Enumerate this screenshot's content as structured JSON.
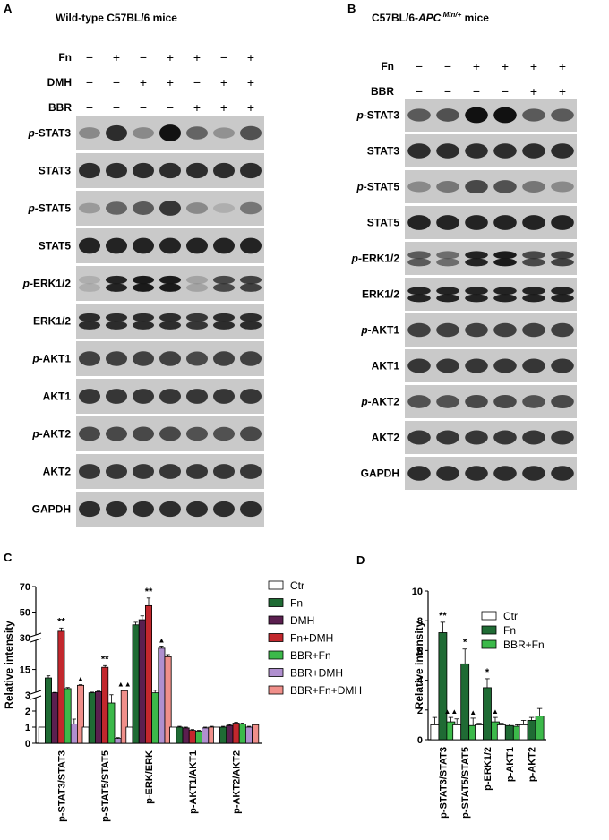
{
  "panel_a": {
    "letter": "A",
    "title": "Wild-type C57BL/6 mice",
    "treatments": [
      {
        "label": "Fn",
        "signs": [
          "−",
          "+",
          "−",
          "+",
          "+",
          "−",
          "+"
        ]
      },
      {
        "label": "DMH",
        "signs": [
          "−",
          "−",
          "+",
          "+",
          "−",
          "+",
          "+"
        ]
      },
      {
        "label": "BBR",
        "signs": [
          "−",
          "−",
          "−",
          "−",
          "+",
          "+",
          "+"
        ]
      }
    ],
    "blots": [
      {
        "prefix": "p-",
        "name": "STAT3",
        "intensity": [
          0.35,
          0.85,
          0.35,
          1.0,
          0.55,
          0.3,
          0.65
        ]
      },
      {
        "prefix": "",
        "name": "STAT3",
        "intensity": [
          0.85,
          0.85,
          0.85,
          0.85,
          0.85,
          0.85,
          0.85
        ]
      },
      {
        "prefix": "p-",
        "name": "STAT5",
        "intensity": [
          0.25,
          0.55,
          0.6,
          0.8,
          0.35,
          0.15,
          0.45
        ]
      },
      {
        "prefix": "",
        "name": "STAT5",
        "intensity": [
          0.9,
          0.9,
          0.9,
          0.9,
          0.9,
          0.9,
          0.9
        ]
      },
      {
        "prefix": "p-",
        "name": "ERK1/2",
        "intensity": [
          0.15,
          0.9,
          0.95,
          0.95,
          0.2,
          0.7,
          0.75
        ]
      },
      {
        "prefix": "",
        "name": "ERK1/2",
        "intensity": [
          0.85,
          0.85,
          0.85,
          0.85,
          0.8,
          0.85,
          0.85
        ]
      },
      {
        "prefix": "p-",
        "name": "AKT1",
        "intensity": [
          0.75,
          0.75,
          0.75,
          0.75,
          0.7,
          0.75,
          0.75
        ]
      },
      {
        "prefix": "",
        "name": "AKT1",
        "intensity": [
          0.8,
          0.8,
          0.8,
          0.8,
          0.8,
          0.8,
          0.8
        ]
      },
      {
        "prefix": "p-",
        "name": "AKT2",
        "intensity": [
          0.7,
          0.7,
          0.7,
          0.7,
          0.65,
          0.65,
          0.7
        ]
      },
      {
        "prefix": "",
        "name": "AKT2",
        "intensity": [
          0.8,
          0.8,
          0.8,
          0.8,
          0.8,
          0.8,
          0.8
        ]
      },
      {
        "prefix": "",
        "name": "GAPDH",
        "intensity": [
          0.85,
          0.85,
          0.85,
          0.85,
          0.85,
          0.85,
          0.85
        ]
      }
    ]
  },
  "panel_b": {
    "letter": "B",
    "title_main": "C57BL/6-",
    "title_italic": "APC",
    "title_sup": " Min/+",
    "title_end": " mice",
    "treatments": [
      {
        "label": "Fn",
        "signs": [
          "−",
          "−",
          "+",
          "+",
          "+",
          "+"
        ]
      },
      {
        "label": "BBR",
        "signs": [
          "−",
          "−",
          "−",
          "−",
          "+",
          "+"
        ]
      }
    ],
    "blots": [
      {
        "prefix": "p-",
        "name": "STAT3",
        "intensity": [
          0.6,
          0.65,
          1.0,
          1.0,
          0.6,
          0.6
        ]
      },
      {
        "prefix": "",
        "name": "STAT3",
        "intensity": [
          0.85,
          0.85,
          0.85,
          0.85,
          0.85,
          0.85
        ]
      },
      {
        "prefix": "p-",
        "name": "STAT5",
        "intensity": [
          0.35,
          0.45,
          0.7,
          0.65,
          0.45,
          0.35
        ]
      },
      {
        "prefix": "",
        "name": "STAT5",
        "intensity": [
          0.9,
          0.9,
          0.9,
          0.9,
          0.9,
          0.9
        ]
      },
      {
        "prefix": "p-",
        "name": "ERK1/2",
        "intensity": [
          0.6,
          0.5,
          0.9,
          0.95,
          0.7,
          0.75
        ]
      },
      {
        "prefix": "",
        "name": "ERK1/2",
        "intensity": [
          0.9,
          0.9,
          0.9,
          0.9,
          0.9,
          0.9
        ]
      },
      {
        "prefix": "p-",
        "name": "AKT1",
        "intensity": [
          0.75,
          0.75,
          0.75,
          0.75,
          0.75,
          0.75
        ]
      },
      {
        "prefix": "",
        "name": "AKT1",
        "intensity": [
          0.8,
          0.8,
          0.8,
          0.8,
          0.8,
          0.8
        ]
      },
      {
        "prefix": "p-",
        "name": "AKT2",
        "intensity": [
          0.65,
          0.65,
          0.7,
          0.7,
          0.65,
          0.7
        ]
      },
      {
        "prefix": "",
        "name": "AKT2",
        "intensity": [
          0.8,
          0.8,
          0.8,
          0.8,
          0.8,
          0.8
        ]
      },
      {
        "prefix": "",
        "name": "GAPDH",
        "intensity": [
          0.85,
          0.85,
          0.85,
          0.85,
          0.85,
          0.85
        ]
      }
    ]
  },
  "chart_data": [
    {
      "panel": "C",
      "type": "bar",
      "ylabel": "Relative intensity",
      "broken_axis": true,
      "segments": [
        {
          "ylim": [
            0,
            3
          ],
          "ticks": [
            0,
            1,
            2,
            3
          ]
        },
        {
          "ylim": [
            3,
            30
          ],
          "ticks": [
            3,
            15
          ]
        },
        {
          "ylim": [
            30,
            70
          ],
          "ticks": [
            30,
            50,
            70
          ]
        }
      ],
      "categories": [
        "p-STAT3/STAT3",
        "p-STAT5/STAT5",
        "p-ERK/ERK",
        "p-AKT1/AKT1",
        "p-AKT2/AKT2"
      ],
      "series": [
        {
          "name": "Ctr",
          "color": "#ffffff",
          "values": [
            1,
            1,
            1,
            1,
            1
          ],
          "errors": [
            0,
            0,
            0,
            0,
            0
          ]
        },
        {
          "name": "Fn",
          "color": "#1f6b34",
          "values": [
            11,
            4,
            40,
            1,
            1
          ],
          "errors": [
            1,
            0.3,
            2,
            0.05,
            0.05
          ]
        },
        {
          "name": "DMH",
          "color": "#5b1f4f",
          "values": [
            4,
            4.5,
            44,
            0.95,
            1.1
          ],
          "errors": [
            0.2,
            0.3,
            3,
            0.05,
            0.05
          ]
        },
        {
          "name": "Fn+DMH",
          "color": "#c2272d",
          "values": [
            35,
            16,
            55,
            0.8,
            1.25
          ],
          "errors": [
            2.5,
            0.8,
            6,
            0.05,
            0.05
          ]
        },
        {
          "name": "BBR+Fn",
          "color": "#3cb94a",
          "values": [
            6,
            2.5,
            4,
            0.75,
            1.2
          ],
          "errors": [
            0.5,
            0.6,
            1.2,
            0.05,
            0.05
          ]
        },
        {
          "name": "BBR+DMH",
          "color": "#b08fcf",
          "values": [
            1.2,
            0.3,
            25,
            0.95,
            1
          ],
          "errors": [
            0.3,
            0.05,
            1,
            0.05,
            0.05
          ]
        },
        {
          "name": "BBR+Fn+DMH",
          "color": "#f08f8a",
          "values": [
            7.5,
            5,
            21,
            1,
            1.15
          ],
          "errors": [
            0.3,
            0.3,
            1,
            0.05,
            0.05
          ]
        }
      ],
      "annotations": [
        {
          "category": "p-STAT3/STAT3",
          "series": "Fn+DMH",
          "text": "**"
        },
        {
          "category": "p-STAT3/STAT3",
          "series": "BBR+Fn+DMH",
          "text": "▲"
        },
        {
          "category": "p-STAT5/STAT5",
          "series": "Fn+DMH",
          "text": "**"
        },
        {
          "category": "p-STAT5/STAT5",
          "series": "BBR+Fn+DMH",
          "text": "▲▲"
        },
        {
          "category": "p-ERK/ERK",
          "series": "Fn+DMH",
          "text": "**"
        },
        {
          "category": "p-ERK/ERK",
          "series": "BBR+DMH",
          "text": "▲"
        }
      ],
      "legend": "right"
    },
    {
      "panel": "D",
      "type": "bar",
      "ylabel": "Relative intensity",
      "ylim": [
        0,
        10
      ],
      "ticks": [
        0,
        2,
        4,
        6,
        8,
        10
      ],
      "categories": [
        "p-STAT3/STAT3",
        "p-STAT5/STAT5",
        "p-ERK1/2",
        "p-AKT1",
        "p-AKT2"
      ],
      "series": [
        {
          "name": "Ctr",
          "color": "#ffffff",
          "values": [
            1,
            1,
            1,
            1,
            1
          ],
          "errors": [
            0.5,
            0.4,
            0.1,
            0.1,
            0.3
          ]
        },
        {
          "name": "Fn",
          "color": "#1f6b34",
          "values": [
            7.2,
            5.1,
            3.5,
            0.95,
            1.3
          ],
          "errors": [
            0.7,
            1.0,
            0.6,
            0.1,
            0.2
          ]
        },
        {
          "name": "BBR+Fn",
          "color": "#3cb94a",
          "values": [
            1.2,
            0.95,
            1.2,
            0.9,
            1.6
          ],
          "errors": [
            0.3,
            0.5,
            0.3,
            0.1,
            0.5
          ]
        }
      ],
      "annotations": [
        {
          "category": "p-STAT3/STAT3",
          "series": "Fn",
          "text": "**"
        },
        {
          "category": "p-STAT3/STAT3",
          "series": "BBR+Fn",
          "text": "▲▲"
        },
        {
          "category": "p-STAT5/STAT5",
          "series": "Fn",
          "text": "*"
        },
        {
          "category": "p-STAT5/STAT5",
          "series": "BBR+Fn",
          "text": "▲"
        },
        {
          "category": "p-ERK1/2",
          "series": "Fn",
          "text": "*"
        },
        {
          "category": "p-ERK1/2",
          "series": "BBR+Fn",
          "text": "▲"
        }
      ],
      "legend": "top-right"
    }
  ]
}
